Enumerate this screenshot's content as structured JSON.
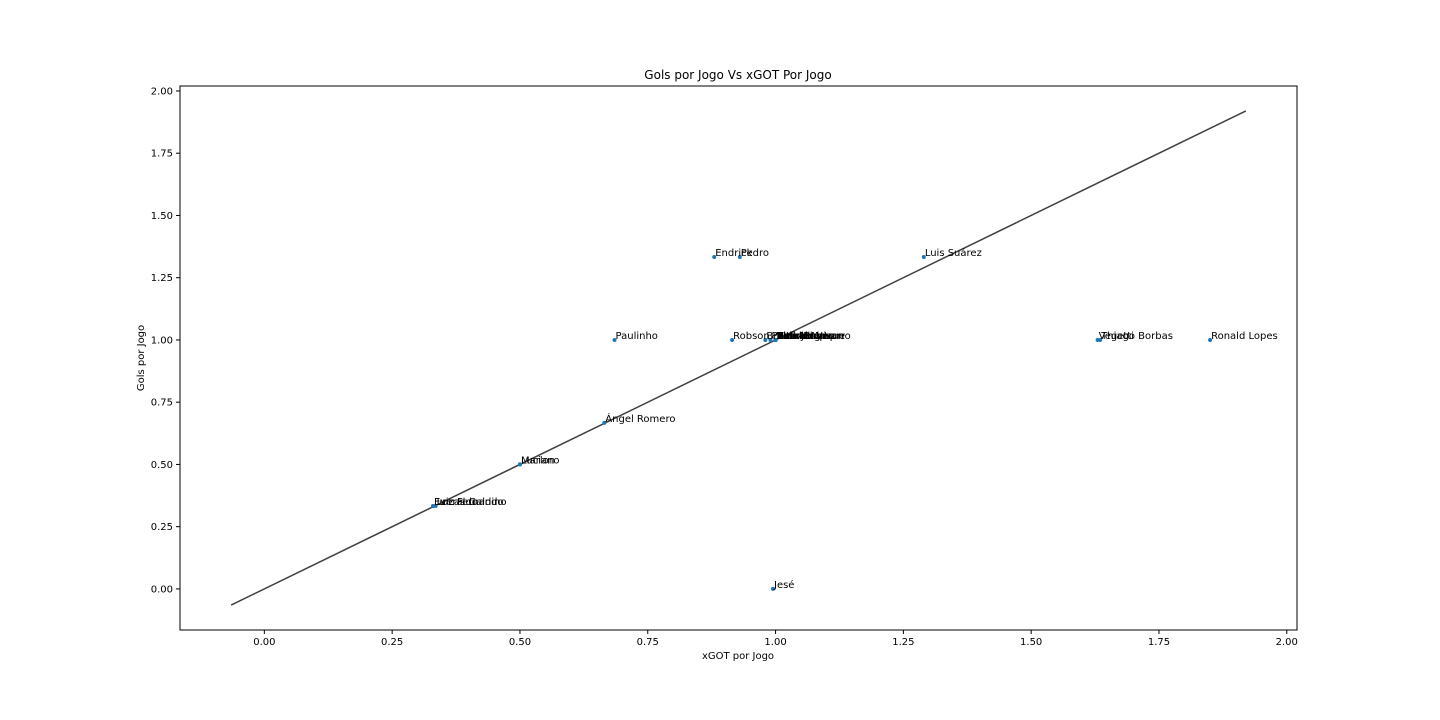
{
  "chart_data": {
    "type": "scatter",
    "title": "Gols por Jogo Vs xGOT Por Jogo",
    "xlabel": "xGOT por Jogo",
    "ylabel": "Gols por Jogo",
    "xlim": [
      -0.165,
      2.02
    ],
    "ylim": [
      -0.165,
      2.02
    ],
    "xticks": [
      "0.00",
      "0.25",
      "0.50",
      "0.75",
      "1.00",
      "1.25",
      "1.50",
      "1.75",
      "2.00"
    ],
    "yticks": [
      "0.00",
      "0.25",
      "0.50",
      "0.75",
      "1.00",
      "1.25",
      "1.50",
      "1.75",
      "2.00"
    ],
    "point_color": "#1f77b4",
    "reference_line": {
      "x": [
        -0.065,
        1.92
      ],
      "y": [
        -0.065,
        1.92
      ],
      "color": "#404040"
    },
    "points": [
      {
        "x": 0.88,
        "y": 1.333,
        "label": "Endrick"
      },
      {
        "x": 0.93,
        "y": 1.333,
        "label": "Pedro"
      },
      {
        "x": 1.29,
        "y": 1.333,
        "label": "Luis Suárez"
      },
      {
        "x": 0.685,
        "y": 1.0,
        "label": "Paulinho"
      },
      {
        "x": 0.915,
        "y": 1.0,
        "label": "Robson"
      },
      {
        "x": 0.98,
        "y": 1.0,
        "label": "Bruno Henrique"
      },
      {
        "x": 0.99,
        "y": 1.0,
        "label": "Pablo"
      },
      {
        "x": 1.0,
        "y": 1.0,
        "label": "Vitinho"
      },
      {
        "x": 1.0,
        "y": 1.0,
        "label": "Alerrandro"
      },
      {
        "x": 1.0,
        "y": 1.0,
        "label": "Kaio Jorge"
      },
      {
        "x": 1.0,
        "y": 1.0,
        "label": "Vitor Roque"
      },
      {
        "x": 1.0,
        "y": 1.0,
        "label": "Rafael Navarro"
      },
      {
        "x": 1.0,
        "y": 1.0,
        "label": "Yuri Alberto"
      },
      {
        "x": 1.0,
        "y": 1.0,
        "label": "Gabriel Veron"
      },
      {
        "x": 1.0,
        "y": 1.0,
        "label": "Hulk"
      },
      {
        "x": 1.63,
        "y": 1.0,
        "label": "Vegetti"
      },
      {
        "x": 1.635,
        "y": 1.0,
        "label": "Thiago Borbas"
      },
      {
        "x": 1.85,
        "y": 1.0,
        "label": "Ronald Lopes"
      },
      {
        "x": 0.665,
        "y": 0.667,
        "label": "Ángel Romero"
      },
      {
        "x": 0.5,
        "y": 0.5,
        "label": "Marlon"
      },
      {
        "x": 0.5,
        "y": 0.5,
        "label": "Luciano"
      },
      {
        "x": 0.33,
        "y": 0.333,
        "label": "Everaldo"
      },
      {
        "x": 0.33,
        "y": 0.333,
        "label": "Luiz Fernando"
      },
      {
        "x": 0.335,
        "y": 0.333,
        "label": "Lucas Galdino"
      },
      {
        "x": 0.995,
        "y": 0.0,
        "label": "Jesé"
      }
    ]
  }
}
